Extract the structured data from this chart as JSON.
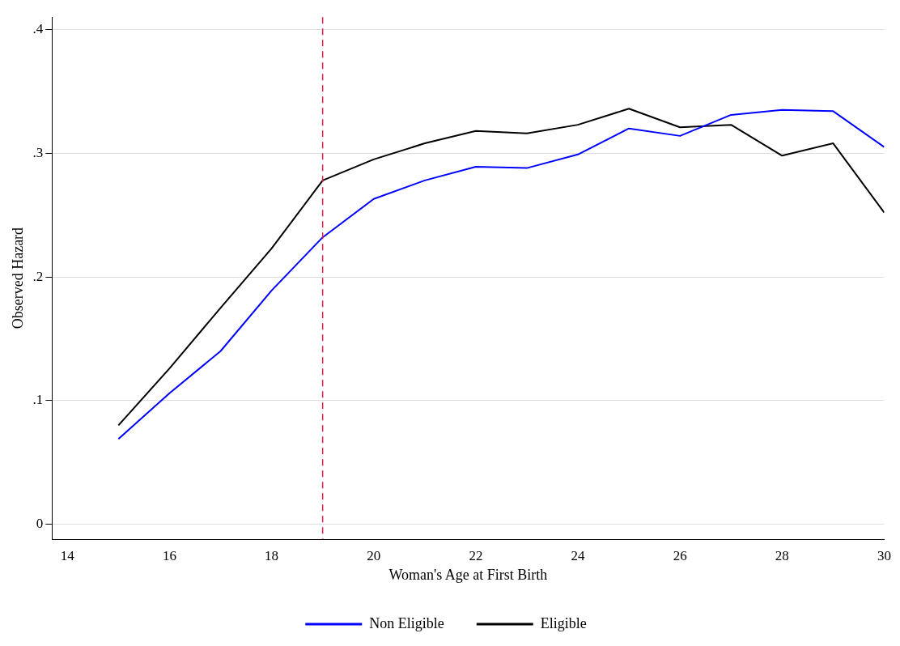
{
  "chart_data": {
    "type": "line",
    "xlabel": "Woman's Age at First Birth",
    "ylabel": "Observed Hazard",
    "x": [
      15,
      16,
      17,
      18,
      19,
      20,
      21,
      22,
      23,
      24,
      25,
      26,
      27,
      28,
      29,
      30
    ],
    "series": [
      {
        "name": "Non Eligible",
        "color": "#0000ff",
        "values": [
          0.069,
          0.106,
          0.14,
          0.189,
          0.232,
          0.263,
          0.278,
          0.289,
          0.288,
          0.299,
          0.32,
          0.314,
          0.331,
          0.335,
          0.334,
          0.305
        ]
      },
      {
        "name": "Eligible",
        "color": "#000000",
        "values": [
          0.08,
          0.126,
          0.175,
          0.223,
          0.278,
          0.295,
          0.308,
          0.318,
          0.316,
          0.323,
          0.336,
          0.321,
          0.323,
          0.298,
          0.308,
          0.252
        ]
      }
    ],
    "xlim": [
      13.7,
      30
    ],
    "xticks": [
      14,
      16,
      18,
      20,
      22,
      24,
      26,
      28,
      30
    ],
    "ylim": [
      -0.012,
      0.41
    ],
    "yticks": [
      {
        "value": 0,
        "label": "0"
      },
      {
        "value": 0.1,
        "label": ".1"
      },
      {
        "value": 0.2,
        "label": ".2"
      },
      {
        "value": 0.3,
        "label": ".3"
      },
      {
        "value": 0.4,
        "label": ".4"
      }
    ],
    "ref_lines": [
      {
        "axis": "x",
        "value": 19,
        "color": "#d6204a",
        "line_style": "dashed"
      }
    ],
    "grid": "y",
    "legend": "bottom",
    "marker": "none",
    "line_style": "solid"
  }
}
